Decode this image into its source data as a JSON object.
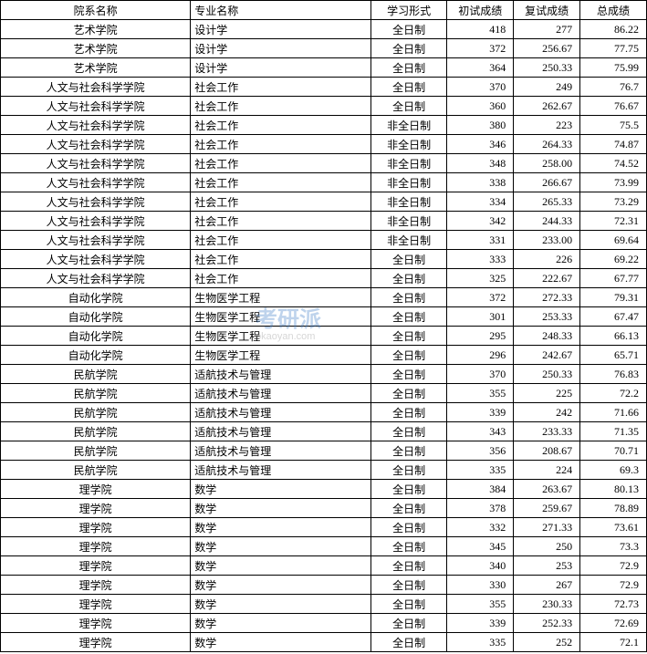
{
  "table": {
    "columns": [
      "院系名称",
      "专业名称",
      "学习形式",
      "初试成绩",
      "复试成绩",
      "总成绩"
    ],
    "rows": [
      [
        "艺术学院",
        "设计学",
        "全日制",
        "418",
        "277",
        "86.22"
      ],
      [
        "艺术学院",
        "设计学",
        "全日制",
        "372",
        "256.67",
        "77.75"
      ],
      [
        "艺术学院",
        "设计学",
        "全日制",
        "364",
        "250.33",
        "75.99"
      ],
      [
        "人文与社会科学学院",
        "社会工作",
        "全日制",
        "370",
        "249",
        "76.7"
      ],
      [
        "人文与社会科学学院",
        "社会工作",
        "全日制",
        "360",
        "262.67",
        "76.67"
      ],
      [
        "人文与社会科学学院",
        "社会工作",
        "非全日制",
        "380",
        "223",
        "75.5"
      ],
      [
        "人文与社会科学学院",
        "社会工作",
        "非全日制",
        "346",
        "264.33",
        "74.87"
      ],
      [
        "人文与社会科学学院",
        "社会工作",
        "非全日制",
        "348",
        "258.00",
        "74.52"
      ],
      [
        "人文与社会科学学院",
        "社会工作",
        "非全日制",
        "338",
        "266.67",
        "73.99"
      ],
      [
        "人文与社会科学学院",
        "社会工作",
        "非全日制",
        "334",
        "265.33",
        "73.29"
      ],
      [
        "人文与社会科学学院",
        "社会工作",
        "非全日制",
        "342",
        "244.33",
        "72.31"
      ],
      [
        "人文与社会科学学院",
        "社会工作",
        "非全日制",
        "331",
        "233.00",
        "69.64"
      ],
      [
        "人文与社会科学学院",
        "社会工作",
        "全日制",
        "333",
        "226",
        "69.22"
      ],
      [
        "人文与社会科学学院",
        "社会工作",
        "全日制",
        "325",
        "222.67",
        "67.77"
      ],
      [
        "自动化学院",
        "生物医学工程",
        "全日制",
        "372",
        "272.33",
        "79.31"
      ],
      [
        "自动化学院",
        "生物医学工程",
        "全日制",
        "301",
        "253.33",
        "67.47"
      ],
      [
        "自动化学院",
        "生物医学工程",
        "全日制",
        "295",
        "248.33",
        "66.13"
      ],
      [
        "自动化学院",
        "生物医学工程",
        "全日制",
        "296",
        "242.67",
        "65.71"
      ],
      [
        "民航学院",
        "适航技术与管理",
        "全日制",
        "370",
        "250.33",
        "76.83"
      ],
      [
        "民航学院",
        "适航技术与管理",
        "全日制",
        "355",
        "225",
        "72.2"
      ],
      [
        "民航学院",
        "适航技术与管理",
        "全日制",
        "339",
        "242",
        "71.66"
      ],
      [
        "民航学院",
        "适航技术与管理",
        "全日制",
        "343",
        "233.33",
        "71.35"
      ],
      [
        "民航学院",
        "适航技术与管理",
        "全日制",
        "356",
        "208.67",
        "70.71"
      ],
      [
        "民航学院",
        "适航技术与管理",
        "全日制",
        "335",
        "224",
        "69.3"
      ],
      [
        "理学院",
        "数学",
        "全日制",
        "384",
        "263.67",
        "80.13"
      ],
      [
        "理学院",
        "数学",
        "全日制",
        "378",
        "259.67",
        "78.89"
      ],
      [
        "理学院",
        "数学",
        "全日制",
        "332",
        "271.33",
        "73.61"
      ],
      [
        "理学院",
        "数学",
        "全日制",
        "345",
        "250",
        "73.3"
      ],
      [
        "理学院",
        "数学",
        "全日制",
        "340",
        "253",
        "72.9"
      ],
      [
        "理学院",
        "数学",
        "全日制",
        "330",
        "267",
        "72.9"
      ],
      [
        "理学院",
        "数学",
        "全日制",
        "355",
        "230.33",
        "72.73"
      ],
      [
        "理学院",
        "数学",
        "全日制",
        "339",
        "252.33",
        "72.69"
      ],
      [
        "理学院",
        "数学",
        "全日制",
        "335",
        "252",
        "72.1"
      ]
    ]
  },
  "watermark": {
    "main": "考研派",
    "sub": "okaoyan.com"
  }
}
